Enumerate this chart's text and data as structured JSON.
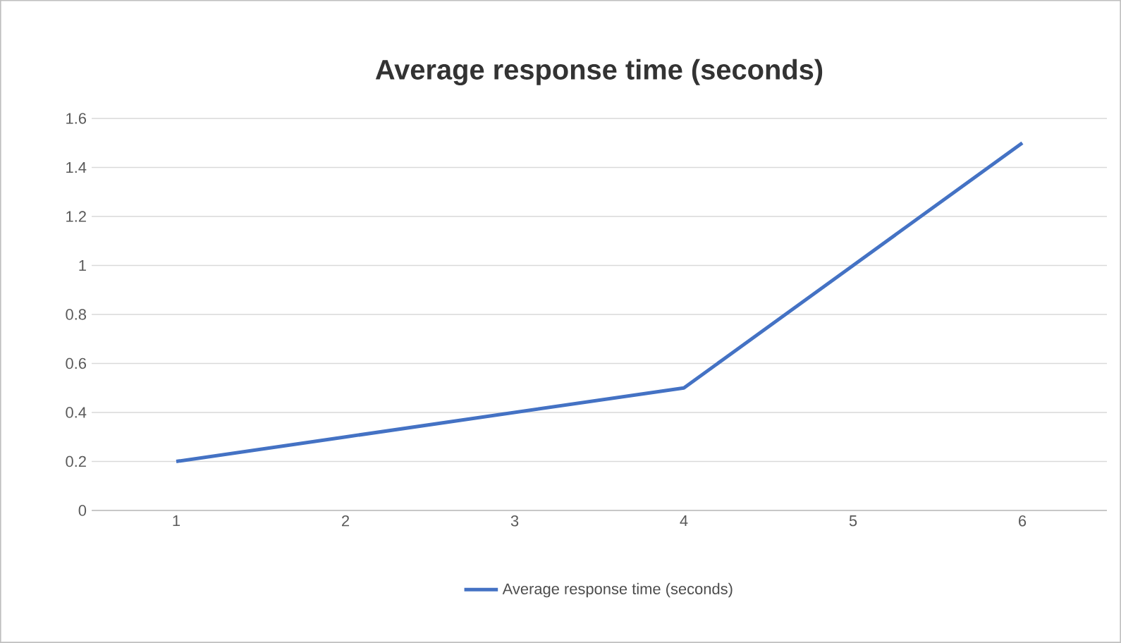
{
  "chart_data": {
    "type": "line",
    "title": "Average response time (seconds)",
    "categories": [
      "1",
      "2",
      "3",
      "4",
      "5",
      "6"
    ],
    "series": [
      {
        "name": "Average response time (seconds)",
        "color": "#4472c4",
        "values": [
          0.2,
          0.3,
          0.4,
          0.5,
          1.0,
          1.5
        ]
      }
    ],
    "ylim": [
      0,
      1.6
    ],
    "yticks": [
      0,
      0.2,
      0.4,
      0.6,
      0.8,
      1,
      1.2,
      1.4,
      1.6
    ],
    "grid": "y",
    "legend": "bottom",
    "marker": "none",
    "line_style": "solid"
  }
}
